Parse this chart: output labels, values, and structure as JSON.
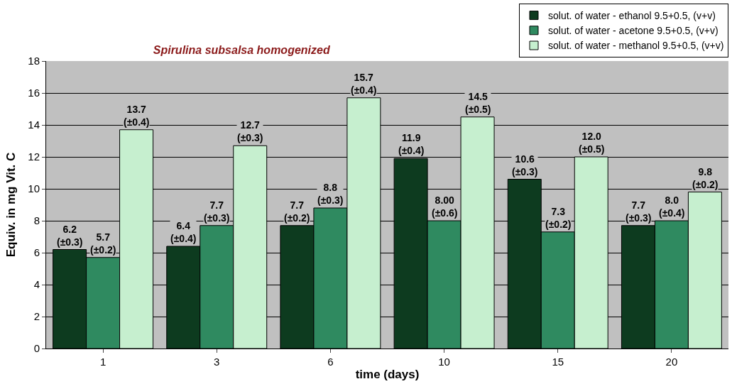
{
  "chart_data": {
    "type": "bar",
    "title": "Spirulina subsalsa homogenized",
    "xlabel": "time (days)",
    "ylabel": "Equiv. in mg Vit. C",
    "categories": [
      "1",
      "3",
      "6",
      "10",
      "15",
      "20"
    ],
    "series": [
      {
        "name": "solut. of water - ethanol 9.5+0.5, (v+v)",
        "color": "#0d3b1f",
        "values": [
          6.2,
          6.4,
          7.7,
          11.9,
          10.6,
          7.7
        ],
        "value_labels": [
          "6.2\n(±0.3)",
          "6.4\n(±0.4)",
          "7.7\n(±0.2)",
          "11.9\n(±0.4)",
          "10.6\n(±0.3)",
          "7.7\n(±0.3)"
        ]
      },
      {
        "name": "solut. of water - acetone 9.5+0.5, (v+v)",
        "color": "#2f8a60",
        "values": [
          5.7,
          7.7,
          8.8,
          8.0,
          7.3,
          8.0
        ],
        "value_labels": [
          "5.7\n(±0.2)",
          "7.7\n(±0.3)",
          "8.8\n(±0.3)",
          "8.00\n(±0.6)",
          "7.3\n(±0.2)",
          "8.0\n(±0.4)"
        ]
      },
      {
        "name": "solut. of water - methanol 9.5+0.5, (v+v)",
        "color": "#c6efcf",
        "values": [
          13.7,
          12.7,
          15.7,
          14.5,
          12.0,
          9.8
        ],
        "value_labels": [
          "13.7\n(±0.4)",
          "12.7\n(±0.3)",
          "15.7\n(±0.4)",
          "14.5\n(±0.5)",
          "12.0\n(±0.5)",
          "9.8\n(±0.2)"
        ]
      }
    ],
    "ylim": [
      0,
      18
    ],
    "yticks": [
      0,
      2,
      4,
      6,
      8,
      10,
      12,
      14,
      16,
      18
    ],
    "grid": "y",
    "legend": "top right"
  }
}
